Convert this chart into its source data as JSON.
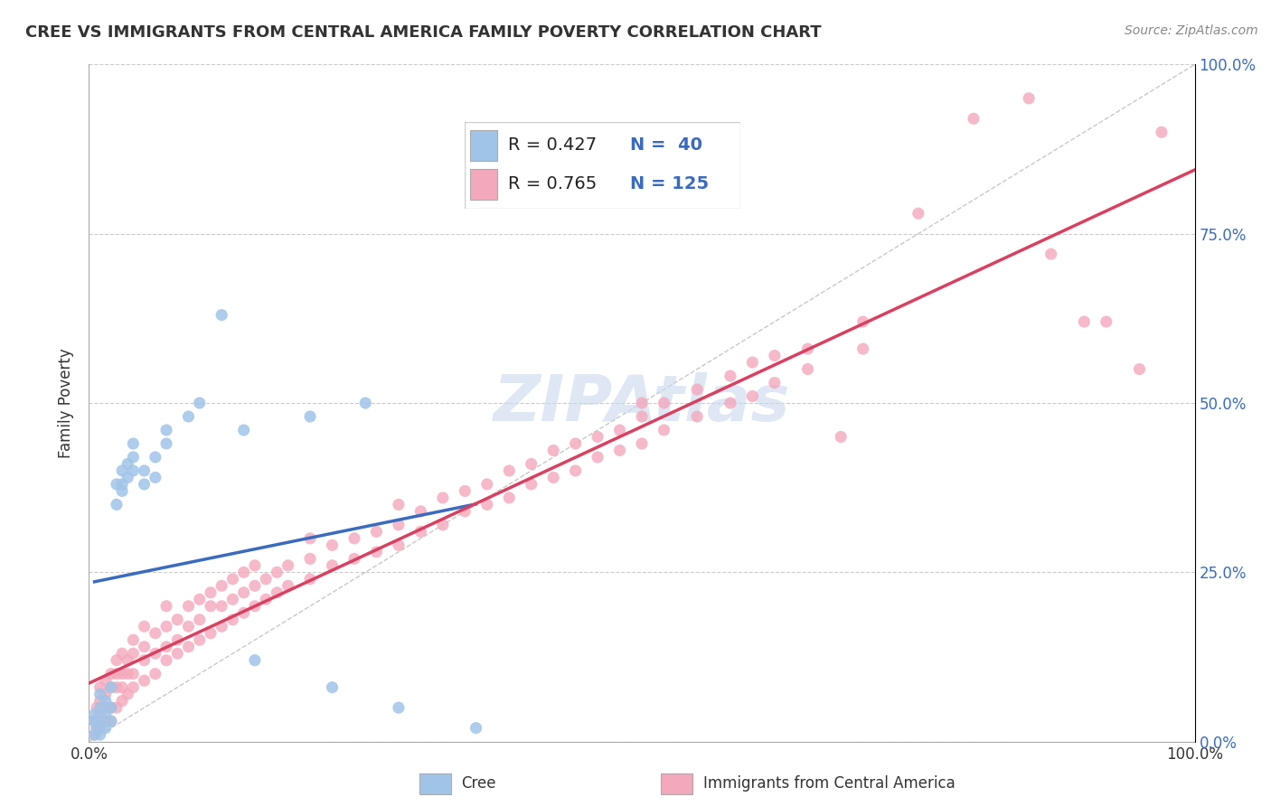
{
  "title": "CREE VS IMMIGRANTS FROM CENTRAL AMERICA FAMILY POVERTY CORRELATION CHART",
  "source": "Source: ZipAtlas.com",
  "ylabel": "Family Poverty",
  "xmin": 0.0,
  "xmax": 1.0,
  "ymin": 0.0,
  "ymax": 1.0,
  "xtick_labels": [
    "0.0%",
    "100.0%"
  ],
  "xtick_positions": [
    0.0,
    1.0
  ],
  "ytick_labels": [
    "0.0%",
    "25.0%",
    "50.0%",
    "75.0%",
    "100.0%"
  ],
  "ytick_positions": [
    0.0,
    0.25,
    0.5,
    0.75,
    1.0
  ],
  "cree_color": "#a0c4e8",
  "immigrants_color": "#f4a8bc",
  "cree_line_color": "#3a6bbf",
  "immigrants_line_color": "#d94060",
  "ref_line_color": "#bbbbbb",
  "legend_text_color_blue": "#3a6bbf",
  "watermark_color": "#c8d8ec",
  "cree_points": [
    [
      0.005,
      0.01
    ],
    [
      0.005,
      0.03
    ],
    [
      0.005,
      0.04
    ],
    [
      0.007,
      0.02
    ],
    [
      0.01,
      0.01
    ],
    [
      0.01,
      0.03
    ],
    [
      0.01,
      0.05
    ],
    [
      0.01,
      0.07
    ],
    [
      0.015,
      0.02
    ],
    [
      0.015,
      0.04
    ],
    [
      0.015,
      0.06
    ],
    [
      0.02,
      0.03
    ],
    [
      0.02,
      0.05
    ],
    [
      0.02,
      0.08
    ],
    [
      0.025,
      0.35
    ],
    [
      0.025,
      0.38
    ],
    [
      0.03,
      0.37
    ],
    [
      0.03,
      0.38
    ],
    [
      0.03,
      0.4
    ],
    [
      0.035,
      0.39
    ],
    [
      0.035,
      0.41
    ],
    [
      0.04,
      0.4
    ],
    [
      0.04,
      0.42
    ],
    [
      0.04,
      0.44
    ],
    [
      0.05,
      0.38
    ],
    [
      0.05,
      0.4
    ],
    [
      0.06,
      0.39
    ],
    [
      0.06,
      0.42
    ],
    [
      0.07,
      0.44
    ],
    [
      0.07,
      0.46
    ],
    [
      0.09,
      0.48
    ],
    [
      0.1,
      0.5
    ],
    [
      0.12,
      0.63
    ],
    [
      0.14,
      0.46
    ],
    [
      0.2,
      0.48
    ],
    [
      0.25,
      0.5
    ],
    [
      0.15,
      0.12
    ],
    [
      0.22,
      0.08
    ],
    [
      0.28,
      0.05
    ],
    [
      0.35,
      0.02
    ]
  ],
  "immigrants_points": [
    [
      0.005,
      0.01
    ],
    [
      0.005,
      0.03
    ],
    [
      0.007,
      0.02
    ],
    [
      0.007,
      0.05
    ],
    [
      0.01,
      0.02
    ],
    [
      0.01,
      0.04
    ],
    [
      0.01,
      0.06
    ],
    [
      0.01,
      0.08
    ],
    [
      0.015,
      0.03
    ],
    [
      0.015,
      0.05
    ],
    [
      0.015,
      0.07
    ],
    [
      0.015,
      0.09
    ],
    [
      0.02,
      0.03
    ],
    [
      0.02,
      0.05
    ],
    [
      0.02,
      0.08
    ],
    [
      0.02,
      0.1
    ],
    [
      0.025,
      0.05
    ],
    [
      0.025,
      0.08
    ],
    [
      0.025,
      0.1
    ],
    [
      0.025,
      0.12
    ],
    [
      0.03,
      0.06
    ],
    [
      0.03,
      0.08
    ],
    [
      0.03,
      0.1
    ],
    [
      0.03,
      0.13
    ],
    [
      0.035,
      0.07
    ],
    [
      0.035,
      0.1
    ],
    [
      0.035,
      0.12
    ],
    [
      0.04,
      0.08
    ],
    [
      0.04,
      0.1
    ],
    [
      0.04,
      0.13
    ],
    [
      0.04,
      0.15
    ],
    [
      0.05,
      0.09
    ],
    [
      0.05,
      0.12
    ],
    [
      0.05,
      0.14
    ],
    [
      0.05,
      0.17
    ],
    [
      0.06,
      0.1
    ],
    [
      0.06,
      0.13
    ],
    [
      0.06,
      0.16
    ],
    [
      0.07,
      0.12
    ],
    [
      0.07,
      0.14
    ],
    [
      0.07,
      0.17
    ],
    [
      0.07,
      0.2
    ],
    [
      0.08,
      0.13
    ],
    [
      0.08,
      0.15
    ],
    [
      0.08,
      0.18
    ],
    [
      0.09,
      0.14
    ],
    [
      0.09,
      0.17
    ],
    [
      0.09,
      0.2
    ],
    [
      0.1,
      0.15
    ],
    [
      0.1,
      0.18
    ],
    [
      0.1,
      0.21
    ],
    [
      0.11,
      0.16
    ],
    [
      0.11,
      0.2
    ],
    [
      0.11,
      0.22
    ],
    [
      0.12,
      0.17
    ],
    [
      0.12,
      0.2
    ],
    [
      0.12,
      0.23
    ],
    [
      0.13,
      0.18
    ],
    [
      0.13,
      0.21
    ],
    [
      0.13,
      0.24
    ],
    [
      0.14,
      0.19
    ],
    [
      0.14,
      0.22
    ],
    [
      0.14,
      0.25
    ],
    [
      0.15,
      0.2
    ],
    [
      0.15,
      0.23
    ],
    [
      0.15,
      0.26
    ],
    [
      0.16,
      0.21
    ],
    [
      0.16,
      0.24
    ],
    [
      0.17,
      0.22
    ],
    [
      0.17,
      0.25
    ],
    [
      0.18,
      0.23
    ],
    [
      0.18,
      0.26
    ],
    [
      0.2,
      0.24
    ],
    [
      0.2,
      0.27
    ],
    [
      0.2,
      0.3
    ],
    [
      0.22,
      0.26
    ],
    [
      0.22,
      0.29
    ],
    [
      0.24,
      0.27
    ],
    [
      0.24,
      0.3
    ],
    [
      0.26,
      0.28
    ],
    [
      0.26,
      0.31
    ],
    [
      0.28,
      0.29
    ],
    [
      0.28,
      0.32
    ],
    [
      0.28,
      0.35
    ],
    [
      0.3,
      0.31
    ],
    [
      0.3,
      0.34
    ],
    [
      0.32,
      0.32
    ],
    [
      0.32,
      0.36
    ],
    [
      0.34,
      0.34
    ],
    [
      0.34,
      0.37
    ],
    [
      0.36,
      0.35
    ],
    [
      0.36,
      0.38
    ],
    [
      0.38,
      0.36
    ],
    [
      0.38,
      0.4
    ],
    [
      0.4,
      0.38
    ],
    [
      0.4,
      0.41
    ],
    [
      0.42,
      0.39
    ],
    [
      0.42,
      0.43
    ],
    [
      0.44,
      0.4
    ],
    [
      0.44,
      0.44
    ],
    [
      0.46,
      0.42
    ],
    [
      0.46,
      0.45
    ],
    [
      0.48,
      0.43
    ],
    [
      0.48,
      0.46
    ],
    [
      0.5,
      0.44
    ],
    [
      0.5,
      0.48
    ],
    [
      0.5,
      0.5
    ],
    [
      0.52,
      0.46
    ],
    [
      0.52,
      0.5
    ],
    [
      0.55,
      0.48
    ],
    [
      0.55,
      0.52
    ],
    [
      0.58,
      0.5
    ],
    [
      0.58,
      0.54
    ],
    [
      0.6,
      0.51
    ],
    [
      0.6,
      0.56
    ],
    [
      0.62,
      0.53
    ],
    [
      0.62,
      0.57
    ],
    [
      0.65,
      0.55
    ],
    [
      0.65,
      0.58
    ],
    [
      0.68,
      0.45
    ],
    [
      0.7,
      0.58
    ],
    [
      0.7,
      0.62
    ],
    [
      0.75,
      0.78
    ],
    [
      0.8,
      0.92
    ],
    [
      0.85,
      0.95
    ],
    [
      0.87,
      0.72
    ],
    [
      0.9,
      0.62
    ],
    [
      0.92,
      0.62
    ],
    [
      0.95,
      0.55
    ],
    [
      0.97,
      0.9
    ]
  ]
}
